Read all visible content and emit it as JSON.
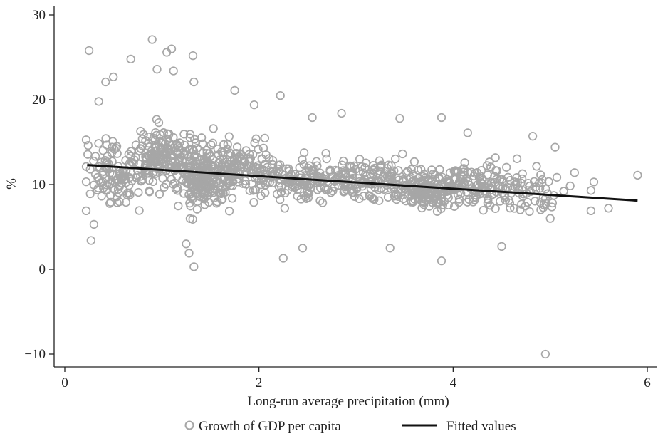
{
  "chart_data": {
    "type": "scatter",
    "title": "",
    "xlabel": "Long-run average precipitation (mm)",
    "ylabel": "%",
    "xlim": [
      0,
      6.05
    ],
    "ylim": [
      -11.1,
      31
    ],
    "xticks": [
      0,
      2,
      4,
      6
    ],
    "yticks": [
      -10,
      0,
      10,
      20,
      30
    ],
    "xtick_labels": [
      "0",
      "2",
      "4",
      "6"
    ],
    "ytick_labels": [
      "−10",
      "0",
      "10",
      "20",
      "30"
    ],
    "grid": false,
    "legend_position": "bottom",
    "colors": {
      "scatter": "#a6a6a6",
      "fit": "#111111",
      "axis": "#222222"
    },
    "series": [
      {
        "name": "Growth of GDP per capita",
        "kind": "scatter",
        "marker": "hollow-circle",
        "highlight_points": [
          {
            "x": 0.25,
            "y": 25.8
          },
          {
            "x": 0.9,
            "y": 27.1
          },
          {
            "x": 1.1,
            "y": 26.0
          },
          {
            "x": 1.05,
            "y": 25.6
          },
          {
            "x": 1.32,
            "y": 25.2
          },
          {
            "x": 0.68,
            "y": 24.8
          },
          {
            "x": 0.95,
            "y": 23.6
          },
          {
            "x": 1.12,
            "y": 23.4
          },
          {
            "x": 0.5,
            "y": 22.7
          },
          {
            "x": 0.42,
            "y": 22.1
          },
          {
            "x": 1.33,
            "y": 22.1
          },
          {
            "x": 1.75,
            "y": 21.1
          },
          {
            "x": 2.22,
            "y": 20.5
          },
          {
            "x": 0.35,
            "y": 19.8
          },
          {
            "x": 1.95,
            "y": 19.4
          },
          {
            "x": 2.85,
            "y": 18.4
          },
          {
            "x": 2.55,
            "y": 17.9
          },
          {
            "x": 3.45,
            "y": 17.8
          },
          {
            "x": 3.88,
            "y": 17.9
          },
          {
            "x": 4.15,
            "y": 16.1
          },
          {
            "x": 4.82,
            "y": 15.7
          },
          {
            "x": 5.05,
            "y": 14.4
          },
          {
            "x": 5.25,
            "y": 11.4
          },
          {
            "x": 5.9,
            "y": 11.1
          },
          {
            "x": 5.45,
            "y": 10.3
          },
          {
            "x": 5.42,
            "y": 9.3
          },
          {
            "x": 5.6,
            "y": 7.2
          },
          {
            "x": 5.42,
            "y": 6.9
          },
          {
            "x": 5.0,
            "y": 6.0
          },
          {
            "x": 4.5,
            "y": 2.7
          },
          {
            "x": 3.88,
            "y": 1.0
          },
          {
            "x": 3.35,
            "y": 2.5
          },
          {
            "x": 2.25,
            "y": 1.3
          },
          {
            "x": 2.45,
            "y": 2.5
          },
          {
            "x": 1.33,
            "y": 0.3
          },
          {
            "x": 1.28,
            "y": 1.9
          },
          {
            "x": 1.25,
            "y": 3.0
          },
          {
            "x": 0.27,
            "y": 3.4
          },
          {
            "x": 0.22,
            "y": 6.9
          },
          {
            "x": 0.3,
            "y": 5.3
          },
          {
            "x": 4.95,
            "y": -10.0
          }
        ],
        "clusters": [
          {
            "x": 0.5,
            "y": 11.5,
            "sx": 0.25,
            "sy": 3.2,
            "n": 120
          },
          {
            "x": 1.0,
            "y": 13.5,
            "sx": 0.2,
            "sy": 3.0,
            "n": 140
          },
          {
            "x": 1.4,
            "y": 11.0,
            "sx": 0.2,
            "sy": 3.0,
            "n": 230
          },
          {
            "x": 1.8,
            "y": 12.0,
            "sx": 0.25,
            "sy": 2.6,
            "n": 110
          },
          {
            "x": 2.4,
            "y": 10.5,
            "sx": 0.35,
            "sy": 2.4,
            "n": 140
          },
          {
            "x": 3.1,
            "y": 10.6,
            "sx": 0.35,
            "sy": 2.1,
            "n": 140
          },
          {
            "x": 3.75,
            "y": 9.6,
            "sx": 0.25,
            "sy": 2.0,
            "n": 180
          },
          {
            "x": 4.3,
            "y": 10.2,
            "sx": 0.3,
            "sy": 2.1,
            "n": 110
          },
          {
            "x": 4.85,
            "y": 9.3,
            "sx": 0.25,
            "sy": 2.0,
            "n": 45
          }
        ]
      },
      {
        "name": "Fitted values",
        "kind": "line",
        "points": [
          {
            "x": 0.23,
            "y": 12.3
          },
          {
            "x": 5.9,
            "y": 8.1
          }
        ]
      }
    ]
  }
}
